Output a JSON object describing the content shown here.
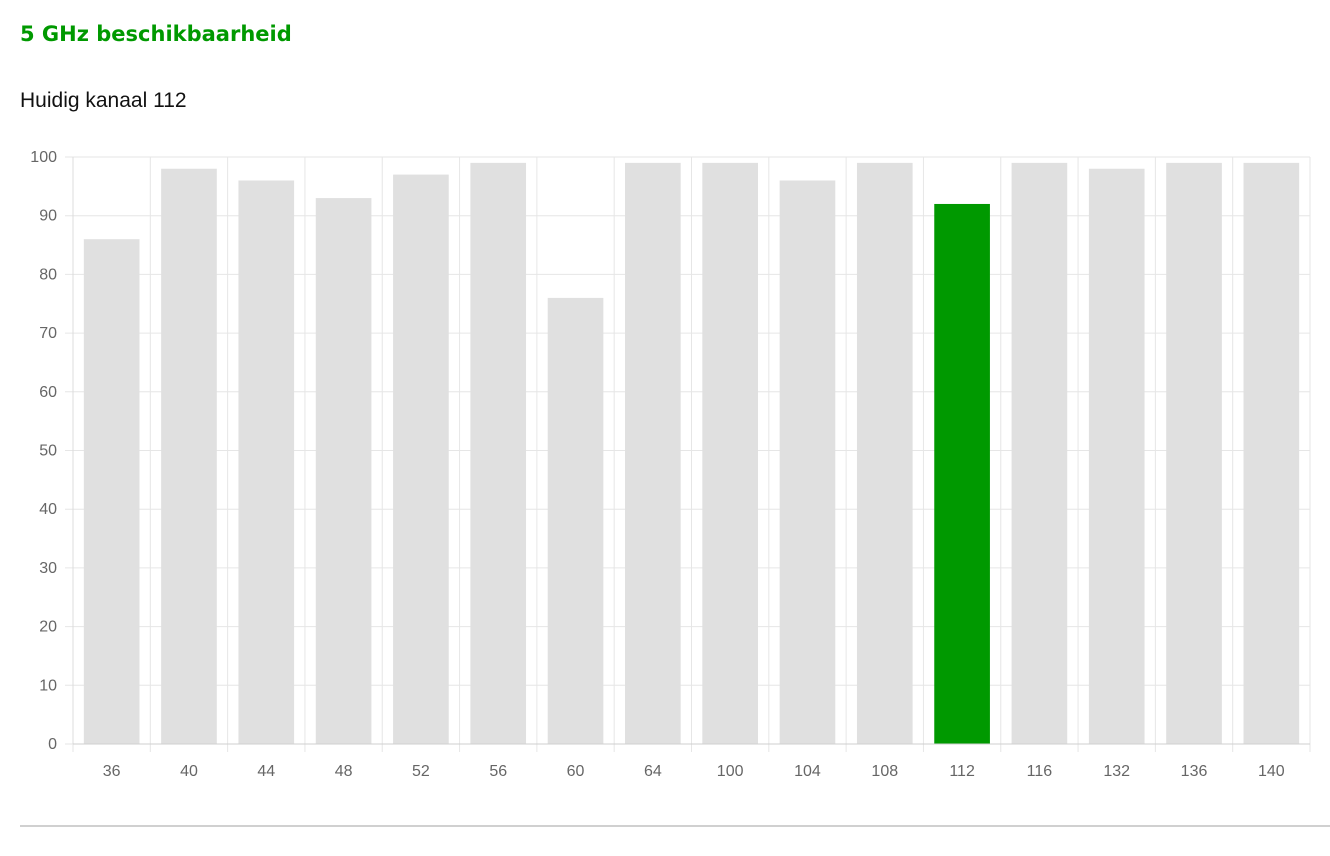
{
  "header": {
    "title": "5 GHz beschikbaarheid",
    "subtitle": "Huidig kanaal 112"
  },
  "colors": {
    "accent": "#009900",
    "bar_default": "#e0e0e0",
    "bar_highlight": "#009900",
    "grid": "#e6e6e6",
    "tick_text": "#666666"
  },
  "chart_data": {
    "type": "bar",
    "categories": [
      "36",
      "40",
      "44",
      "48",
      "52",
      "56",
      "60",
      "64",
      "100",
      "104",
      "108",
      "112",
      "116",
      "132",
      "136",
      "140"
    ],
    "values": [
      86,
      98,
      96,
      93,
      97,
      99,
      76,
      99,
      99,
      96,
      99,
      92,
      99,
      98,
      99,
      99
    ],
    "highlight_category": "112",
    "title": "",
    "xlabel": "",
    "ylabel": "",
    "ylim": [
      0,
      100
    ],
    "yticks": [
      0,
      10,
      20,
      30,
      40,
      50,
      60,
      70,
      80,
      90,
      100
    ],
    "grid": true,
    "legend": "none"
  }
}
